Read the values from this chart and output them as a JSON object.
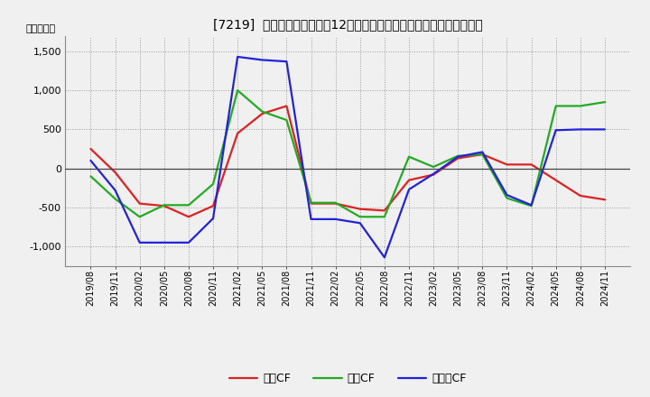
{
  "title": "[7219]  キャッシュフローの12か月移動合計の対前年同期増減額の推移",
  "ylabel": "（百万円）",
  "background_color": "#f0f0f0",
  "plot_bg_color": "#f0f0f0",
  "grid_color": "#999999",
  "xlabels": [
    "2019/08",
    "2019/11",
    "2020/02",
    "2020/05",
    "2020/08",
    "2020/11",
    "2021/02",
    "2021/05",
    "2021/08",
    "2021/11",
    "2022/02",
    "2022/05",
    "2022/08",
    "2022/11",
    "2023/02",
    "2023/05",
    "2023/08",
    "2023/11",
    "2024/02",
    "2024/05",
    "2024/08",
    "2024/11"
  ],
  "営業CF": [
    250,
    -50,
    -450,
    -480,
    -620,
    -480,
    450,
    700,
    800,
    -450,
    -450,
    -520,
    -540,
    -150,
    -80,
    130,
    180,
    50,
    50,
    -150,
    -350,
    -400
  ],
  "投資CF": [
    -100,
    -390,
    -620,
    -470,
    -470,
    -200,
    1000,
    730,
    620,
    -440,
    -440,
    -620,
    -620,
    150,
    20,
    160,
    180,
    -380,
    -480,
    800,
    800,
    850
  ],
  "フリーCF": [
    100,
    -280,
    -950,
    -950,
    -950,
    -640,
    1430,
    1390,
    1370,
    -650,
    -650,
    -700,
    -1140,
    -270,
    -70,
    150,
    210,
    -340,
    -470,
    490,
    500,
    500
  ],
  "ylim": [
    -1250,
    1700
  ],
  "yticks": [
    -1000,
    -500,
    0,
    500,
    1000,
    1500
  ],
  "line_colors": {
    "営業CF": "#dd2222",
    "投資CF": "#22aa22",
    "フリーCF": "#2222dd"
  },
  "line_width": 1.6
}
